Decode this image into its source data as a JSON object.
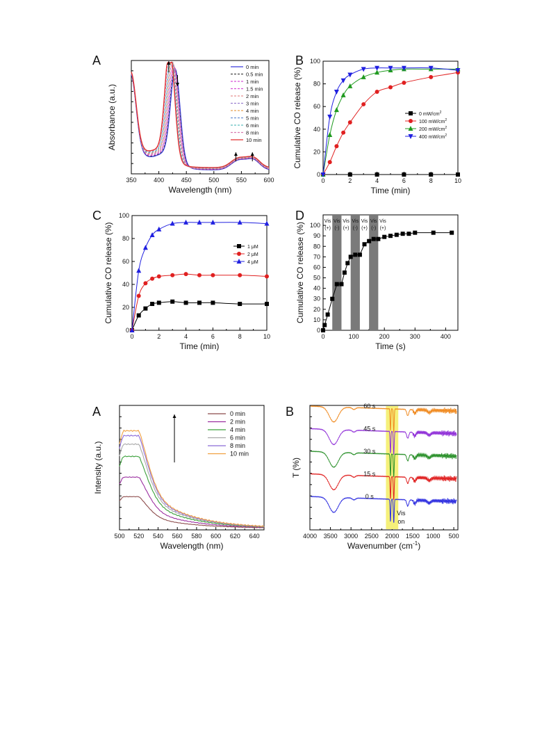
{
  "chart_data": [
    {
      "type": "line",
      "panel_label": "A",
      "xlabel": "Wavelength (nm)",
      "ylabel": "Absorbance (a.u.)",
      "xlim": [
        350,
        600
      ],
      "x_ticks": [
        350,
        400,
        450,
        500,
        550,
        600
      ],
      "legend_position": "top-right",
      "series": [
        {
          "name": "0 min",
          "color": "#3b3bdc",
          "dash": "solid",
          "peak_x": 430,
          "peak_y": 0.8
        },
        {
          "name": "0.5 min",
          "color": "#444444",
          "dash": "dashed",
          "peak_x": 429,
          "peak_y": 0.81
        },
        {
          "name": "1 min",
          "color": "#d84fd8",
          "dash": "dashed",
          "peak_x": 428,
          "peak_y": 0.82
        },
        {
          "name": "1.5 min",
          "color": "#d84fd8",
          "dash": "dashed",
          "peak_x": 427,
          "peak_y": 0.83
        },
        {
          "name": "2 min",
          "color": "#e89090",
          "dash": "dashed",
          "peak_x": 426,
          "peak_y": 0.84
        },
        {
          "name": "3 min",
          "color": "#9a7fd0",
          "dash": "dashed",
          "peak_x": 425,
          "peak_y": 0.86
        },
        {
          "name": "4 min",
          "color": "#e8a050",
          "dash": "dashed",
          "peak_x": 424,
          "peak_y": 0.88
        },
        {
          "name": "5 min",
          "color": "#6a8fd0",
          "dash": "dashed",
          "peak_x": 423,
          "peak_y": 0.9
        },
        {
          "name": "6 min",
          "color": "#5fbfbf",
          "dash": "dashed",
          "peak_x": 422,
          "peak_y": 0.92
        },
        {
          "name": "8 min",
          "color": "#d87ab0",
          "dash": "dashed",
          "peak_x": 421,
          "peak_y": 0.95
        },
        {
          "name": "10 min",
          "color": "#e03030",
          "dash": "solid",
          "peak_x": 420,
          "peak_y": 0.98
        }
      ],
      "arrows": [
        {
          "x": 418,
          "direction": "up"
        },
        {
          "x": 434,
          "direction": "down"
        },
        {
          "x": 540,
          "direction": "up"
        },
        {
          "x": 570,
          "direction": "up"
        }
      ]
    },
    {
      "type": "line",
      "panel_label": "B",
      "xlabel": "Time (min)",
      "ylabel": "Cumulative CO release (%)",
      "xlim": [
        0,
        10
      ],
      "ylim": [
        0,
        100
      ],
      "x_ticks": [
        0,
        2,
        4,
        6,
        8,
        10
      ],
      "y_ticks": [
        0,
        20,
        40,
        60,
        80,
        100
      ],
      "legend_position": "middle-right",
      "series": [
        {
          "name": "0 mW/cm",
          "superscript": "2",
          "color": "#000000",
          "marker": "square",
          "x": [
            0,
            2,
            4,
            6,
            8,
            10
          ],
          "y": [
            0,
            0,
            0,
            0,
            0,
            0
          ]
        },
        {
          "name": "100 mW/cm",
          "superscript": "2",
          "color": "#e02020",
          "marker": "circle",
          "x": [
            0,
            0.5,
            1,
            1.5,
            2,
            3,
            4,
            5,
            6,
            8,
            10
          ],
          "y": [
            0,
            11,
            25,
            37,
            46,
            62,
            73,
            77,
            81,
            86,
            90
          ]
        },
        {
          "name": "200 mW/cm",
          "superscript": "2",
          "color": "#1f9a1f",
          "marker": "triangle-up",
          "x": [
            0,
            0.5,
            1,
            1.5,
            2,
            3,
            4,
            5,
            6,
            8,
            10
          ],
          "y": [
            0,
            35,
            57,
            70,
            78,
            86,
            90,
            92,
            93,
            93,
            93
          ]
        },
        {
          "name": "400 mW/cm",
          "superscript": "2",
          "color": "#2020e0",
          "marker": "triangle-down",
          "x": [
            0,
            0.5,
            1,
            1.5,
            2,
            3,
            4,
            5,
            6,
            8,
            10
          ],
          "y": [
            0,
            51,
            73,
            83,
            88,
            93,
            94,
            94,
            94,
            94,
            92
          ]
        }
      ]
    },
    {
      "type": "line",
      "panel_label": "C",
      "xlabel": "Time (min)",
      "ylabel": "Cumulative CO release (%)",
      "xlim": [
        0,
        10
      ],
      "ylim": [
        0,
        100
      ],
      "x_ticks": [
        0,
        2,
        4,
        6,
        8,
        10
      ],
      "y_ticks": [
        0,
        20,
        40,
        60,
        80,
        100
      ],
      "legend_position": "middle-right",
      "series": [
        {
          "name": "1 μM",
          "color": "#000000",
          "marker": "square",
          "x": [
            0,
            0.5,
            1,
            1.5,
            2,
            3,
            4,
            5,
            6,
            8,
            10
          ],
          "y": [
            0,
            13,
            19,
            23,
            24,
            25,
            24,
            24,
            24,
            23,
            23
          ]
        },
        {
          "name": "2 μM",
          "color": "#e02020",
          "marker": "circle",
          "x": [
            0,
            0.5,
            1,
            1.5,
            2,
            3,
            4,
            5,
            6,
            8,
            10
          ],
          "y": [
            0,
            30,
            41,
            45,
            47,
            48,
            49,
            48,
            48,
            48,
            47
          ]
        },
        {
          "name": "4 μM",
          "color": "#2020e0",
          "marker": "triangle-up",
          "x": [
            0,
            0.5,
            1,
            1.5,
            2,
            3,
            4,
            5,
            6,
            8,
            10
          ],
          "y": [
            0,
            52,
            72,
            83,
            88,
            93,
            94,
            94,
            94,
            94,
            93
          ]
        }
      ]
    },
    {
      "type": "line",
      "panel_label": "D",
      "xlabel": "Time (s)",
      "ylabel": "Cumulative CO release (%)",
      "xlim": [
        0,
        440
      ],
      "ylim": [
        0,
        110
      ],
      "x_ticks": [
        0,
        100,
        200,
        300,
        400
      ],
      "y_ticks": [
        0,
        10,
        20,
        30,
        40,
        50,
        60,
        70,
        80,
        90,
        100
      ],
      "series": [
        {
          "name": "",
          "color": "#000000",
          "marker": "square",
          "x": [
            0,
            5,
            15,
            30,
            45,
            60,
            70,
            80,
            90,
            105,
            120,
            135,
            150,
            165,
            180,
            200,
            220,
            240,
            260,
            280,
            300,
            360,
            420
          ],
          "y": [
            0,
            5,
            15,
            30,
            44,
            44,
            55,
            64,
            70,
            72,
            72,
            82,
            85,
            87,
            87,
            89,
            90,
            91,
            92,
            92,
            93,
            93,
            93
          ]
        }
      ],
      "dark_bands": [
        [
          30,
          60
        ],
        [
          90,
          120
        ],
        [
          150,
          180
        ]
      ],
      "band_labels": [
        {
          "x": 15,
          "top": "Vis",
          "bottom": "(+)"
        },
        {
          "x": 45,
          "top": "Vis",
          "bottom": "(-)"
        },
        {
          "x": 75,
          "top": "Vis",
          "bottom": "(+)"
        },
        {
          "x": 105,
          "top": "Vis",
          "bottom": "(-)"
        },
        {
          "x": 135,
          "top": "Vis",
          "bottom": "(+)"
        },
        {
          "x": 165,
          "top": "Vis",
          "bottom": "(-)"
        },
        {
          "x": 195,
          "top": "Vis",
          "bottom": "(+)"
        }
      ],
      "band_color": "#7a7a7a"
    },
    {
      "type": "line",
      "panel_label": "A",
      "xlabel": "Wavelength (nm)",
      "ylabel": "Intensity (a.u.)",
      "xlim": [
        500,
        650
      ],
      "x_ticks": [
        500,
        520,
        540,
        560,
        580,
        600,
        620,
        640
      ],
      "legend_position": "top-right",
      "arrow": {
        "x": 557,
        "direction": "up"
      },
      "series": [
        {
          "name": "0 min",
          "color": "#8b4a4a",
          "peak_y": 0.26
        },
        {
          "name": "2 min",
          "color": "#9b2fa0",
          "peak_y": 0.42
        },
        {
          "name": "4 min",
          "color": "#3aa03a",
          "peak_y": 0.59
        },
        {
          "name": "6 min",
          "color": "#a8a8a8",
          "peak_y": 0.69
        },
        {
          "name": "8 min",
          "color": "#8a6ad8",
          "peak_y": 0.76
        },
        {
          "name": "10 min",
          "color": "#f0a040",
          "peak_y": 0.8
        }
      ]
    },
    {
      "type": "line",
      "panel_label": "B",
      "xlabel": "Wavenumber (cm",
      "xlabel_superscript": "-1",
      "xlabel_suffix": ")",
      "ylabel": "T (%)",
      "xlim": [
        4000,
        400
      ],
      "x_ticks": [
        4000,
        3500,
        3000,
        2500,
        2000,
        1500,
        1000,
        500
      ],
      "highlight_band": [
        2150,
        1850
      ],
      "highlight_color": "#f5f07a",
      "annotation": {
        "top": "Vis",
        "bottom": "on"
      },
      "series": [
        {
          "name": "0 s",
          "color": "#3030e0",
          "offset": 0
        },
        {
          "name": "15 s",
          "color": "#e02020",
          "offset": 1
        },
        {
          "name": "30 s",
          "color": "#2a902a",
          "offset": 2
        },
        {
          "name": "45 s",
          "color": "#9030d8",
          "offset": 3
        },
        {
          "name": "60 s",
          "color": "#f08a20",
          "offset": 4
        }
      ]
    }
  ]
}
